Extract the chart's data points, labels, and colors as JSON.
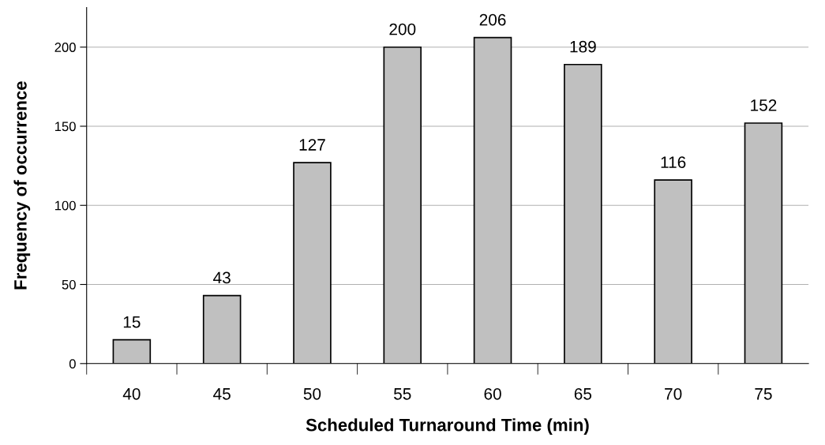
{
  "chart_data": {
    "type": "bar",
    "xlabel": "Scheduled Turnaround Time (min)",
    "ylabel": "Frequency of occurrence",
    "categories": [
      "40",
      "45",
      "50",
      "55",
      "60",
      "65",
      "70",
      "75"
    ],
    "values": [
      15,
      43,
      127,
      200,
      206,
      189,
      116,
      152
    ],
    "color": "#c0c0c0",
    "ylim": [
      0,
      225
    ],
    "yticks": [
      0,
      50,
      100,
      150,
      200
    ],
    "grid": "y",
    "data_labels": true,
    "legend": false
  }
}
